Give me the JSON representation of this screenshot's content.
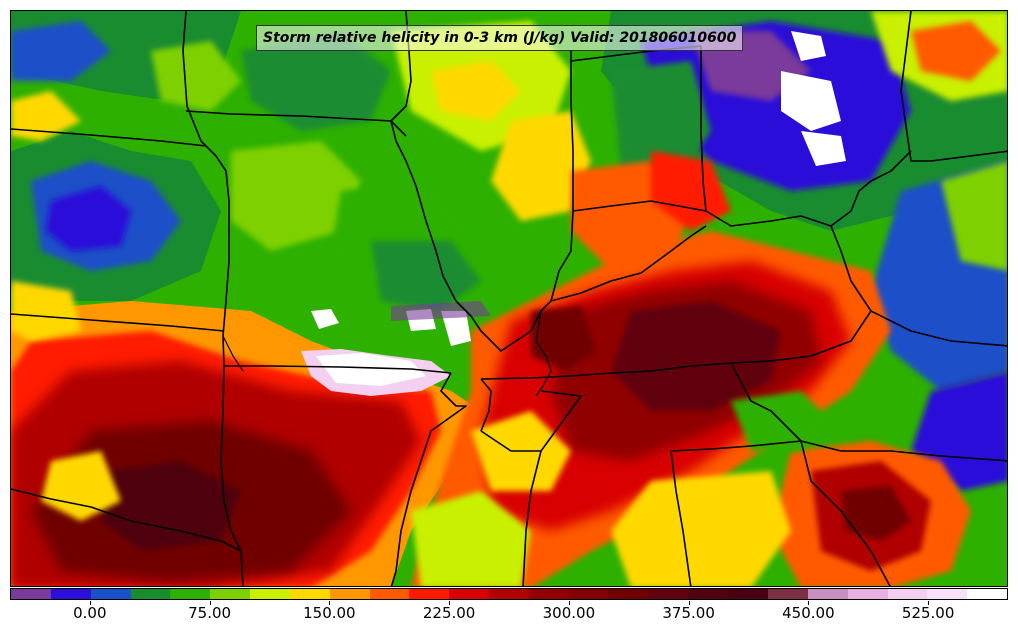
{
  "map": {
    "title": "Storm relative helicity in 0-3 km (J/kg) Valid: 201806010600",
    "variable": "Storm relative helicity in 0-3 km",
    "units": "J/kg",
    "valid_time": "201806010600",
    "background_color": "#2db000",
    "border_color": "#000000"
  },
  "colorbar": {
    "min": -50,
    "max": 575,
    "interval": 25,
    "colors": [
      "#7a3a9a",
      "#2a10d8",
      "#1a50c8",
      "#1a8c30",
      "#2db000",
      "#7ed000",
      "#c8f000",
      "#ffd800",
      "#ff9800",
      "#ff5a00",
      "#ff1a00",
      "#d80000",
      "#b00000",
      "#900000",
      "#800000",
      "#700000",
      "#600010",
      "#500010",
      "#480010",
      "#7a3040",
      "#c890c0",
      "#e8b0e0",
      "#f4d0f0",
      "#f8e0f8",
      "#ffffff"
    ],
    "tick_labels": [
      "0.00",
      "75.00",
      "150.00",
      "225.00",
      "300.00",
      "375.00",
      "450.00",
      "525.00"
    ],
    "tick_values": [
      0,
      75,
      150,
      225,
      300,
      375,
      450,
      525
    ]
  }
}
